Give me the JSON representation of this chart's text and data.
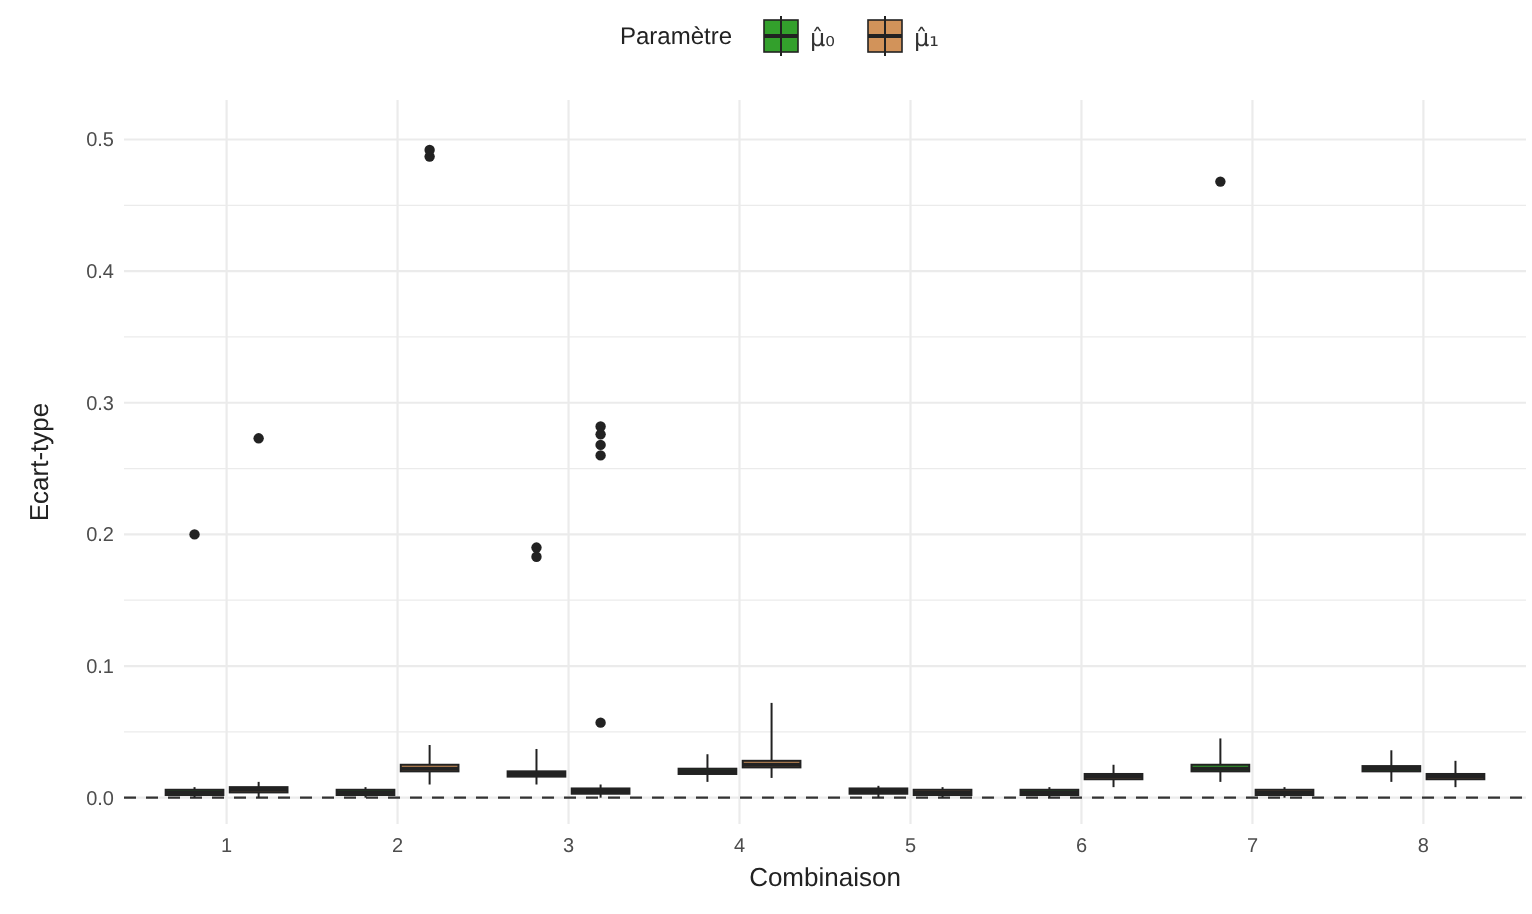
{
  "chart_data": {
    "type": "box",
    "xlabel": "Combinaison",
    "ylabel": "Ecart-type",
    "legend_title": "Paramètre",
    "legend": "top",
    "grid": true,
    "categories": [
      "1",
      "2",
      "3",
      "4",
      "5",
      "6",
      "7",
      "8"
    ],
    "ylim": [
      -0.02,
      0.53
    ],
    "yticks": [
      {
        "value": 0,
        "label": "0.0"
      },
      {
        "value": 0.05,
        "label": null
      },
      0.1,
      {
        "value": 0.15,
        "label": null
      },
      0.2,
      {
        "value": 0.25,
        "label": null
      },
      0.3,
      {
        "value": 0.35,
        "label": null
      },
      0.4,
      {
        "value": 0.45,
        "label": null
      },
      0.5
    ],
    "ref_lines": [
      {
        "axis": "y",
        "value": 0,
        "line_style": "dashed",
        "color": "#333333"
      }
    ],
    "series": [
      {
        "name": "μ̂₀",
        "color": "#33a02c",
        "boxes": [
          {
            "low": 0,
            "q1": 0.002,
            "median": 0.004,
            "q3": 0.006,
            "high": 0.008,
            "outliers": [
              0.2
            ]
          },
          {
            "low": 0,
            "q1": 0.002,
            "median": 0.004,
            "q3": 0.006,
            "high": 0.008
          },
          {
            "low": 0.01,
            "q1": 0.016,
            "median": 0.018,
            "q3": 0.02,
            "high": 0.037,
            "outliers": [
              0.183,
              0.19
            ]
          },
          {
            "low": 0.012,
            "q1": 0.018,
            "median": 0.02,
            "q3": 0.022,
            "high": 0.033
          },
          {
            "low": 0,
            "q1": 0.003,
            "median": 0.005,
            "q3": 0.007,
            "high": 0.009
          },
          {
            "low": 0,
            "q1": 0.002,
            "median": 0.004,
            "q3": 0.006,
            "high": 0.008
          },
          {
            "low": 0.012,
            "q1": 0.02,
            "median": 0.022,
            "q3": 0.025,
            "high": 0.045,
            "outliers": [
              0.468
            ]
          },
          {
            "low": 0.012,
            "q1": 0.02,
            "median": 0.022,
            "q3": 0.024,
            "high": 0.036
          }
        ]
      },
      {
        "name": "μ̂₁",
        "color": "#d2935a",
        "boxes": [
          {
            "low": 0,
            "q1": 0.004,
            "median": 0.006,
            "q3": 0.008,
            "high": 0.012,
            "outliers": [
              0.273
            ]
          },
          {
            "low": 0.01,
            "q1": 0.02,
            "median": 0.022,
            "q3": 0.025,
            "high": 0.04,
            "outliers": [
              0.487,
              0.492
            ]
          },
          {
            "low": 0,
            "q1": 0.003,
            "median": 0.005,
            "q3": 0.007,
            "high": 0.01,
            "outliers": [
              0.057,
              0.26,
              0.268,
              0.276,
              0.282
            ]
          },
          {
            "low": 0.015,
            "q1": 0.023,
            "median": 0.025,
            "q3": 0.028,
            "high": 0.072
          },
          {
            "low": 0,
            "q1": 0.002,
            "median": 0.004,
            "q3": 0.006,
            "high": 0.008
          },
          {
            "low": 0.008,
            "q1": 0.014,
            "median": 0.016,
            "q3": 0.018,
            "high": 0.025
          },
          {
            "low": 0,
            "q1": 0.002,
            "median": 0.004,
            "q3": 0.006,
            "high": 0.008
          },
          {
            "low": 0.008,
            "q1": 0.014,
            "median": 0.016,
            "q3": 0.018,
            "high": 0.028
          }
        ]
      }
    ]
  }
}
